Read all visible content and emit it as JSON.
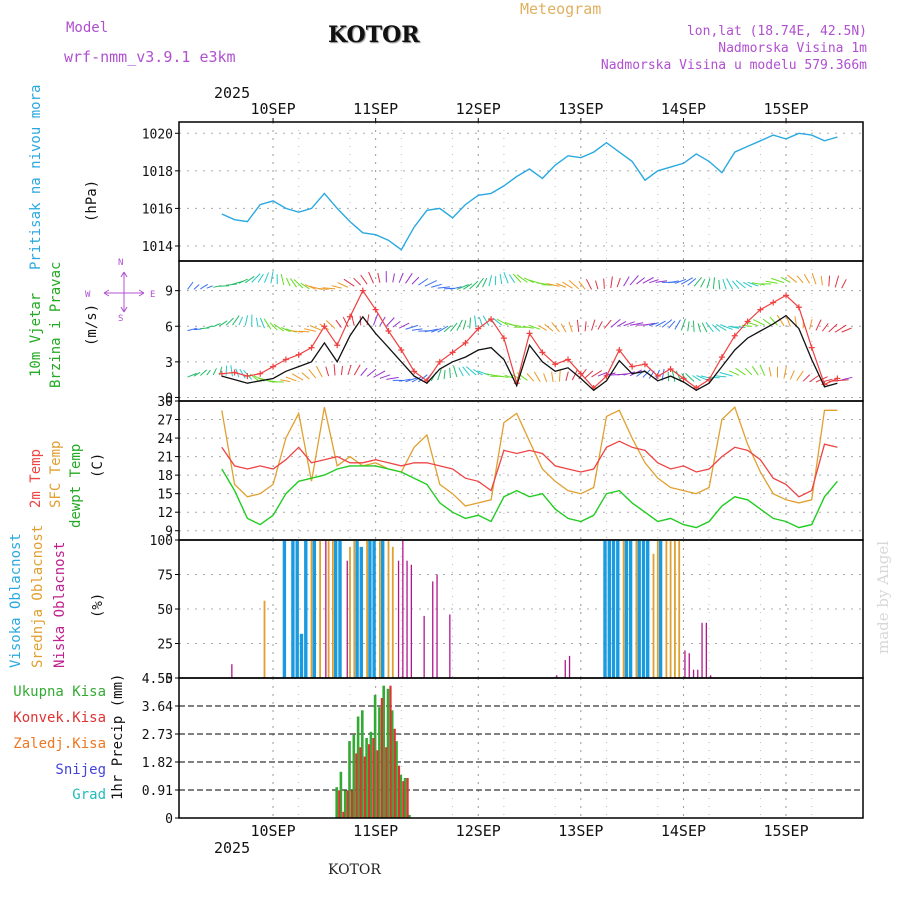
{
  "header": {
    "model_label": "Model",
    "model_name": "wrf-nmm_v3.9.1  e3km",
    "station_title": "KOTOR",
    "product": "Meteogram",
    "location": "lon,lat (18.74E, 42.5N)",
    "elevation": "Nadmorska Visina 1m",
    "model_elevation": "Nadmorska Visina u modelu 579.366m",
    "year": "2025",
    "footer_station": "KOTOR",
    "watermark": "made by Angel"
  },
  "colors": {
    "pressure": "#2aa9e0",
    "wind_mean": "#111111",
    "wind_gust": "#f04040",
    "temp_2m": "#ee4444",
    "temp_sfc": "#e0a030",
    "dewpoint": "#22cc22",
    "cloud_high": "#1a9be0",
    "cloud_mid": "#e0a030",
    "cloud_low": "#b0178a",
    "precip_total": "#33aa33",
    "precip_conv": "#dd3333",
    "precip_freezing": "#ee7722",
    "precip_snow": "#4444dd",
    "precip_hail": "#22bbbb",
    "label_purple": "#b050d0"
  },
  "chart_data": [
    {
      "type": "line",
      "id": "pressure",
      "title": "Pritisak na nivou mora",
      "ylabel": "(hPa)",
      "ylim": [
        1013.2,
        1020.6
      ],
      "yticks": [
        1014,
        1016,
        1018,
        1020
      ],
      "xlabels_top": [
        "10SEP",
        "11SEP",
        "12SEP",
        "13SEP",
        "14SEP",
        "15SEP"
      ],
      "x_hours": [
        0,
        3,
        6,
        9,
        12,
        15,
        18,
        21,
        24,
        27,
        30,
        33,
        36,
        39,
        42,
        45,
        48,
        51,
        54,
        57,
        60,
        63,
        66,
        69,
        72,
        75,
        78,
        81,
        84,
        87,
        90,
        93,
        96,
        99,
        102,
        105,
        108,
        111,
        114,
        117,
        120,
        123,
        126,
        129,
        132,
        135,
        138,
        141,
        144
      ],
      "values": [
        1015.7,
        1015.4,
        1015.3,
        1016.2,
        1016.4,
        1016.0,
        1015.8,
        1016.0,
        1016.8,
        1016.0,
        1015.3,
        1014.7,
        1014.6,
        1014.3,
        1013.8,
        1015.0,
        1015.9,
        1016.0,
        1015.5,
        1016.2,
        1016.7,
        1016.8,
        1017.2,
        1017.7,
        1018.1,
        1017.6,
        1018.3,
        1018.8,
        1018.7,
        1019.0,
        1019.5,
        1019.0,
        1018.5,
        1017.5,
        1018.0,
        1018.2,
        1018.4,
        1018.9,
        1018.5,
        1017.9,
        1019.0,
        1019.3,
        1019.6,
        1019.9,
        1019.7,
        1020.0,
        1019.9,
        1019.6,
        1019.8
      ]
    },
    {
      "type": "line",
      "id": "wind",
      "title": "10m Vjetar",
      "title2": "Brzina i Pravac",
      "ylabel": "(m/s)",
      "ylim": [
        -0.3,
        11.5
      ],
      "yticks": [
        0,
        3,
        6,
        9
      ],
      "compass": [
        "N",
        "W",
        "E",
        "S"
      ],
      "x_hours": [
        0,
        3,
        6,
        9,
        12,
        15,
        18,
        21,
        24,
        27,
        30,
        33,
        36,
        39,
        42,
        45,
        48,
        51,
        54,
        57,
        60,
        63,
        66,
        69,
        72,
        75,
        78,
        81,
        84,
        87,
        90,
        93,
        96,
        99,
        102,
        105,
        108,
        111,
        114,
        117,
        120,
        123,
        126,
        129,
        132,
        135,
        138,
        141,
        144
      ],
      "series": [
        {
          "name": "mean",
          "values": [
            1.8,
            1.5,
            1.2,
            1.4,
            1.6,
            2.2,
            2.6,
            3.0,
            4.6,
            3.0,
            5.2,
            6.8,
            5.4,
            4.2,
            3.0,
            1.8,
            1.2,
            2.4,
            3.0,
            3.4,
            4.0,
            4.2,
            3.2,
            1.0,
            4.4,
            3.0,
            2.2,
            2.5,
            1.6,
            0.6,
            1.4,
            3.1,
            2.0,
            2.2,
            1.4,
            1.8,
            1.3,
            0.6,
            1.2,
            2.6,
            4.0,
            5.0,
            5.6,
            6.2,
            6.9,
            5.8,
            3.2,
            0.9,
            1.2
          ]
        },
        {
          "name": "gust",
          "values": [
            2.0,
            2.1,
            1.8,
            2.0,
            2.6,
            3.2,
            3.6,
            4.2,
            6.0,
            4.4,
            6.8,
            9.0,
            7.4,
            5.6,
            4.0,
            2.2,
            1.4,
            3.0,
            3.8,
            4.6,
            5.8,
            6.6,
            5.0,
            1.2,
            5.4,
            3.8,
            2.8,
            3.2,
            2.0,
            0.8,
            1.8,
            4.0,
            2.6,
            2.8,
            1.8,
            2.4,
            1.6,
            0.8,
            1.5,
            3.4,
            5.2,
            6.4,
            7.4,
            8.0,
            8.6,
            7.6,
            4.2,
            1.1,
            1.6
          ]
        }
      ]
    },
    {
      "type": "line",
      "id": "temperature",
      "title_2m": "2m Temp",
      "title_sfc": "SFC Temp",
      "title_dew": "dewpt Temp",
      "ylabel": "(C)",
      "ylim": [
        7.5,
        30.0
      ],
      "yticks": [
        9,
        12,
        15,
        18,
        21,
        24,
        27,
        30
      ],
      "x_hours": [
        0,
        3,
        6,
        9,
        12,
        15,
        18,
        21,
        24,
        27,
        30,
        33,
        36,
        39,
        42,
        45,
        48,
        51,
        54,
        57,
        60,
        63,
        66,
        69,
        72,
        75,
        78,
        81,
        84,
        87,
        90,
        93,
        96,
        99,
        102,
        105,
        108,
        111,
        114,
        117,
        120,
        123,
        126,
        129,
        132,
        135,
        138,
        141,
        144
      ],
      "series": [
        {
          "name": "2m Temp",
          "values": [
            22.5,
            19.5,
            19.0,
            19.5,
            19.0,
            20.5,
            22.5,
            20.0,
            20.5,
            21.0,
            20.0,
            20.0,
            20.5,
            20.0,
            19.5,
            20.0,
            20.0,
            19.5,
            19.0,
            17.5,
            17.0,
            15.5,
            22.0,
            21.5,
            22.0,
            21.5,
            19.5,
            19.0,
            18.5,
            19.0,
            22.5,
            23.5,
            22.5,
            22.0,
            20.0,
            19.0,
            19.5,
            18.5,
            19.0,
            21.0,
            22.5,
            22.0,
            20.5,
            17.5,
            16.5,
            14.5,
            15.5,
            23.0,
            22.5
          ]
        },
        {
          "name": "SFC Temp",
          "values": [
            28.5,
            16.5,
            14.5,
            15.0,
            16.5,
            24.0,
            28.0,
            17.0,
            29.0,
            19.5,
            21.0,
            19.5,
            20.0,
            19.0,
            18.5,
            22.5,
            24.5,
            16.5,
            15.0,
            13.0,
            13.5,
            14.0,
            26.5,
            28.0,
            23.5,
            19.0,
            17.0,
            15.5,
            15.0,
            16.0,
            27.5,
            28.5,
            24.0,
            20.0,
            17.5,
            16.0,
            15.5,
            15.0,
            16.0,
            27.0,
            29.0,
            23.0,
            18.5,
            15.0,
            14.0,
            13.5,
            14.0,
            28.5,
            28.5
          ]
        },
        {
          "name": "dewpt Temp",
          "values": [
            19.0,
            15.5,
            11.0,
            10.0,
            11.5,
            15.0,
            17.0,
            17.5,
            18.0,
            19.0,
            19.5,
            19.5,
            19.5,
            19.0,
            18.5,
            17.5,
            16.5,
            13.5,
            12.0,
            11.0,
            11.5,
            10.5,
            14.5,
            15.5,
            14.5,
            15.0,
            12.5,
            11.0,
            10.5,
            11.5,
            15.0,
            15.5,
            13.5,
            12.0,
            10.5,
            11.0,
            10.0,
            9.5,
            10.5,
            13.0,
            14.5,
            14.0,
            12.5,
            11.0,
            10.5,
            9.5,
            10.0,
            14.5,
            17.0
          ]
        }
      ]
    },
    {
      "type": "bar",
      "id": "cloud",
      "title_high": "Visoka Oblacnost",
      "title_mid": "Srednja Oblacnost",
      "title_low": "Niska Oblacnost",
      "ylabel": "(%)",
      "ylim": [
        0,
        100
      ],
      "yticks": [
        0,
        25,
        50,
        75,
        100
      ],
      "series": [
        {
          "name": "Visoka",
          "hours": [
            15,
            17,
            18,
            19,
            20,
            22,
            27,
            28,
            32,
            33,
            35,
            36,
            38,
            90,
            91,
            92,
            93,
            95,
            96,
            98,
            99,
            100,
            103
          ],
          "values": [
            100,
            100,
            100,
            32,
            100,
            100,
            100,
            100,
            100,
            95,
            100,
            100,
            100,
            100,
            100,
            100,
            100,
            100,
            100,
            100,
            100,
            100,
            100
          ]
        },
        {
          "name": "Srednja",
          "hours": [
            10,
            21,
            23,
            25,
            26,
            30,
            31,
            34,
            37,
            39,
            40,
            94,
            97,
            101,
            102,
            104,
            105,
            106,
            107
          ],
          "values": [
            56,
            100,
            100,
            100,
            100,
            95,
            100,
            100,
            100,
            100,
            95,
            100,
            100,
            90,
            100,
            100,
            100,
            100,
            100
          ]
        },
        {
          "name": "Niska",
          "hours": [
            2,
            24,
            29,
            41,
            42,
            43,
            44,
            47,
            49,
            50,
            53,
            78,
            80,
            81,
            108,
            109,
            110,
            111,
            112,
            113,
            114
          ],
          "values": [
            10,
            100,
            85,
            85,
            100,
            85,
            82,
            45,
            70,
            75,
            46,
            2,
            13,
            16,
            20,
            18,
            6,
            6,
            40,
            40,
            2
          ]
        }
      ]
    },
    {
      "type": "bar",
      "id": "precip",
      "legend": [
        "Ukupna  Kisa",
        "Konvek.Kisa",
        "Zaledj.Kisa",
        "Snijeg",
        "Grad"
      ],
      "ylabel": "1hr Precip (mm)",
      "ylim": [
        0,
        4.55
      ],
      "yticks": [
        0,
        0.91,
        1.82,
        2.73,
        3.64,
        4.55
      ],
      "ytick_labels": [
        "0",
        "0.91",
        "1.82",
        "2.73",
        "3.64",
        "4.55"
      ],
      "series": [
        {
          "name": "Ukupna Kisa",
          "hours": [
            27,
            28,
            29,
            30,
            31,
            32,
            33,
            34,
            35,
            36,
            37,
            38,
            39,
            40,
            41,
            42,
            43,
            44,
            45
          ],
          "values": [
            1.0,
            1.5,
            0.9,
            2.5,
            2.7,
            3.3,
            3.5,
            2.6,
            2.8,
            4.0,
            3.6,
            4.3,
            4.2,
            3.5,
            2.5,
            1.4,
            1.3,
            0.1,
            0.0
          ]
        },
        {
          "name": "Konvek.Kisa",
          "hours": [
            27,
            28,
            29,
            30,
            31,
            32,
            33,
            34,
            35,
            36,
            37,
            38,
            39,
            40,
            41,
            42,
            43
          ],
          "values": [
            0.9,
            0.2,
            0.9,
            0.9,
            2.1,
            2.3,
            2.0,
            2.4,
            2.6,
            2.2,
            3.9,
            2.3,
            4.3,
            2.9,
            1.7,
            1.2,
            1.3
          ]
        }
      ]
    }
  ]
}
